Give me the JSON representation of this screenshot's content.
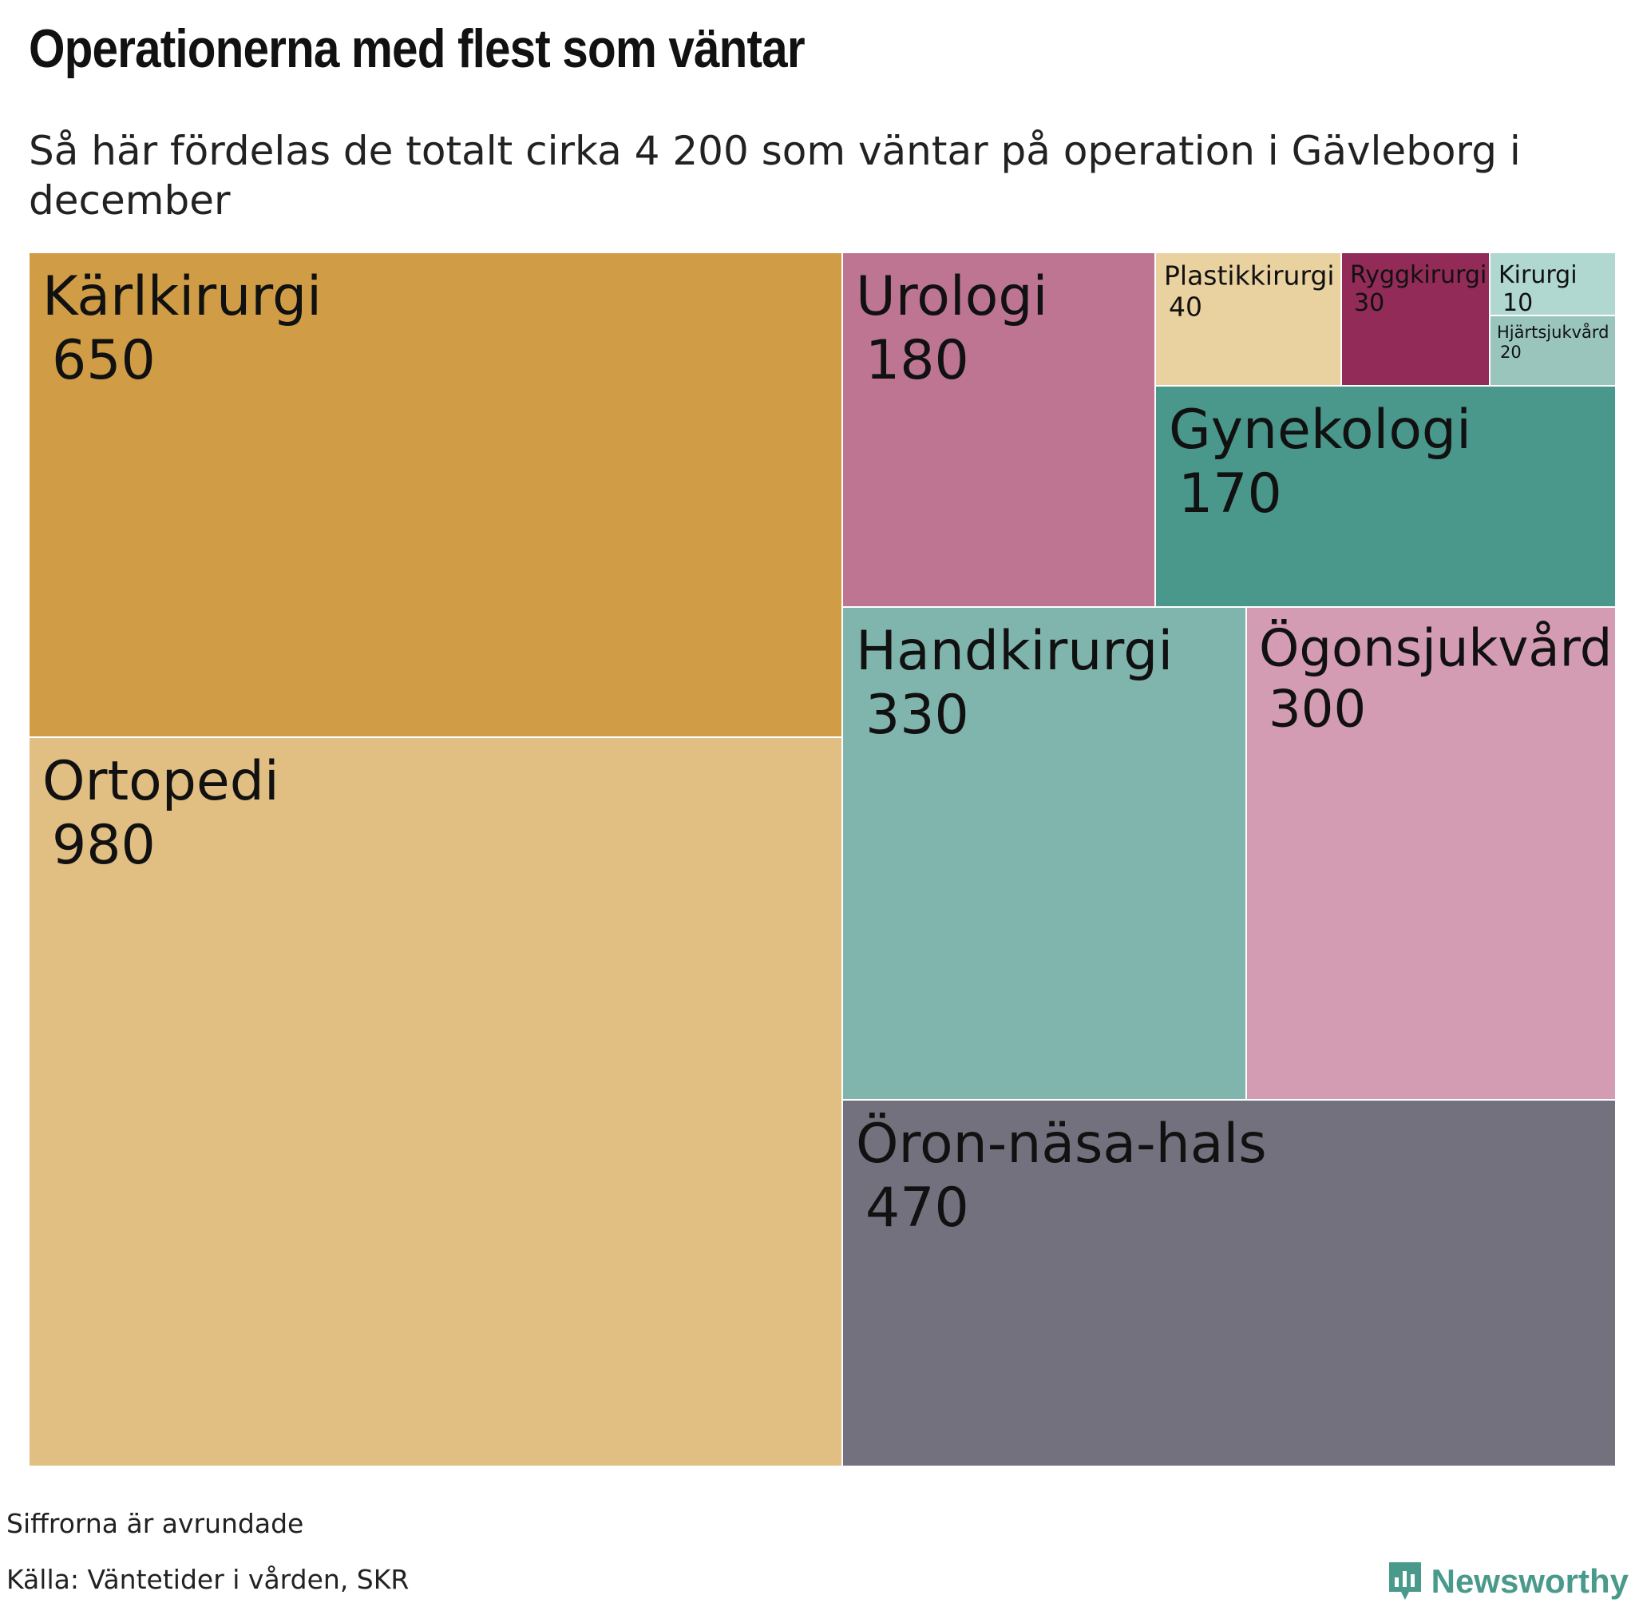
{
  "title": "Operationerna med flest som väntar",
  "subtitle": "Så här fördelas de totalt cirka 4 200 som väntar på operation i Gävleborg i december",
  "footer": {
    "note": "Siffrorna är avrundade",
    "source": "Källa: Väntetider i vården, SKR",
    "brand": "Newsworthy"
  },
  "colors": {
    "logo": "#4a9a8c",
    "border": "#ffffff"
  },
  "chart_data": {
    "type": "treemap",
    "items": [
      {
        "name": "Ortopedi",
        "value": 980,
        "color": "#e1be82"
      },
      {
        "name": "Kärlkirurgi",
        "value": 650,
        "color": "#d09d46"
      },
      {
        "name": "Öron-näsa-hals",
        "value": 470,
        "color": "#73717e"
      },
      {
        "name": "Handkirurgi",
        "value": 330,
        "color": "#80b5ae"
      },
      {
        "name": "Ögonsjukvård",
        "value": 300,
        "color": "#d49cb3"
      },
      {
        "name": "Urologi",
        "value": 180,
        "color": "#bd7592"
      },
      {
        "name": "Gynekologi",
        "value": 170,
        "color": "#4a978b"
      },
      {
        "name": "Plastikkirurgi",
        "value": 40,
        "color": "#e9d2a0"
      },
      {
        "name": "Ryggkirurgi",
        "value": 30,
        "color": "#922b57"
      },
      {
        "name": "Hjärtsjukvård",
        "value": 20,
        "color": "#9ac5bd"
      },
      {
        "name": "Kirurgi",
        "value": 10,
        "color": "#b0d8d1"
      }
    ]
  }
}
